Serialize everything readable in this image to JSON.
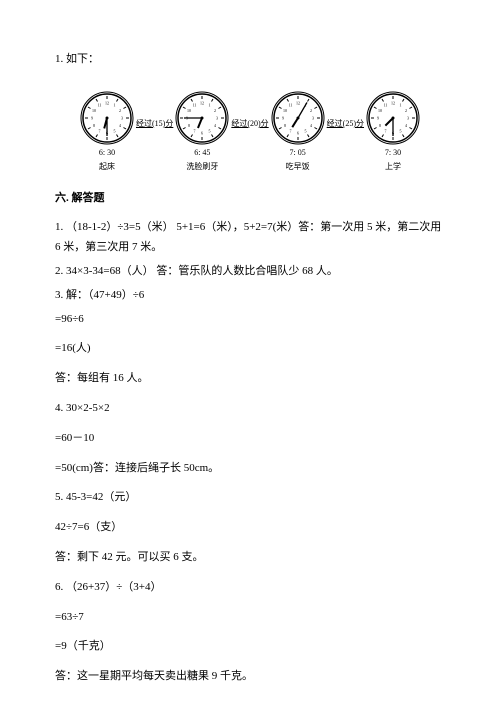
{
  "top_line": "1. 如下：",
  "clocks": [
    {
      "time_label": "6: 30",
      "caption": "起床",
      "hour_angle": 195,
      "minute_angle": 180
    },
    {
      "time_label": "6: 45",
      "caption": "洗脸刷牙",
      "hour_angle": 202,
      "minute_angle": 270
    },
    {
      "time_label": "7: 05",
      "caption": "吃早饭",
      "hour_angle": 212,
      "minute_angle": 30
    },
    {
      "time_label": "7: 30",
      "caption": "上学",
      "hour_angle": 225,
      "minute_angle": 180
    }
  ],
  "intervals": [
    {
      "pre": "经过(",
      "val": "15",
      "post": ")分"
    },
    {
      "pre": "经过(",
      "val": "20",
      "post": ")分"
    },
    {
      "pre": "经过(",
      "val": "25",
      "post": ")分"
    }
  ],
  "section_title": "六. 解答题",
  "answers": {
    "q1": "1. （18-1-2）÷3=5（米）  5+1=6（米），5+2=7(米）答：第一次用 5 米，第二次用 6 米，第三次用 7 米。",
    "q2": "2. 34×3-34=68（人）  答：管乐队的人数比合唱队少 68 人。",
    "q3_a": "3. 解：（47+49）÷6",
    "q3_b": "=96÷6",
    "q3_c": "=16(人)",
    "q3_d": "答：每组有 16 人。",
    "q4_a": "4. 30×2-5×2",
    "q4_b": "=60－10",
    "q4_c": "=50(cm)答：连接后绳子长 50cm。",
    "q5_a": "5. 45-3=42（元）",
    "q5_b": "42÷7=6（支）",
    "q5_c": "答：剩下 42 元。可以买 6 支。",
    "q6_a": "6. （26+37）÷（3+4）",
    "q6_b": "=63÷7",
    "q6_c": "=9（千克）",
    "q6_d": "答：这一星期平均每天卖出糖果 9 千克。"
  },
  "clock_style": {
    "radius": 24,
    "stroke": "#000000",
    "face": "#ffffff",
    "number_font_size": 4
  }
}
